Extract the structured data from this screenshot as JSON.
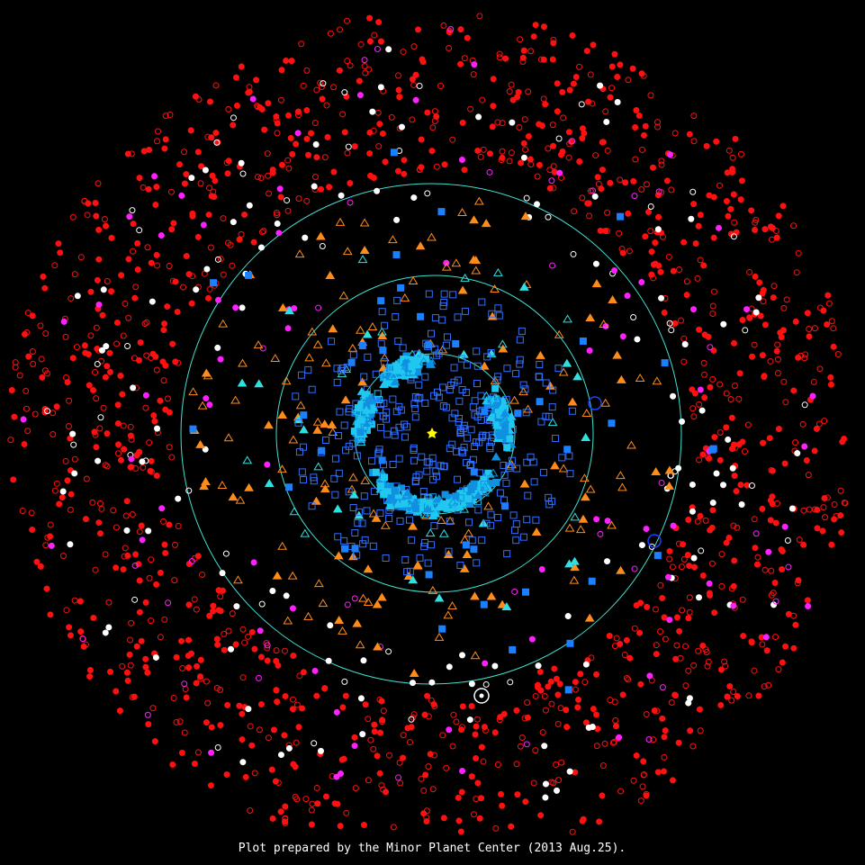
{
  "caption": "Plot prepared by the Minor Planet Center (2013 Aug.25)."
}
